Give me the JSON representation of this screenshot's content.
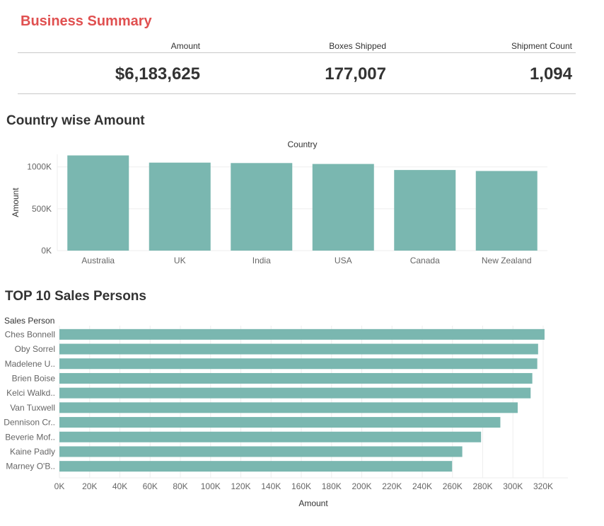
{
  "summary": {
    "title": "Business Summary",
    "kpis": [
      {
        "label": "Amount",
        "value": "$6,183,625"
      },
      {
        "label": "Boxes Shipped",
        "value": "177,007"
      },
      {
        "label": "Shipment Count",
        "value": "1,094"
      }
    ]
  },
  "country_section": {
    "title": "Country wise Amount"
  },
  "sales_section": {
    "title": "TOP 10 Sales Persons"
  },
  "colors": {
    "bar": "#7ab7b0",
    "accent_title": "#e05050",
    "grid": "#eeeeee",
    "tick_text": "#666666"
  },
  "chart_data": [
    {
      "type": "bar",
      "orientation": "vertical",
      "title": "",
      "column_header": "Country",
      "xlabel": "",
      "ylabel": "Amount",
      "categories": [
        "Australia",
        "UK",
        "India",
        "USA",
        "Canada",
        "New Zealand"
      ],
      "values": [
        1137000,
        1051000,
        1046000,
        1035000,
        963000,
        951000
      ],
      "ylim": [
        0,
        1150000
      ],
      "yticks": [
        0,
        500000,
        1000000
      ],
      "ytick_labels": [
        "0K",
        "500K",
        "1000K"
      ],
      "grid": true
    },
    {
      "type": "bar",
      "orientation": "horizontal",
      "title": "",
      "row_header": "Sales Person",
      "xlabel": "Amount",
      "categories": [
        "Ches Bonnell",
        "Oby Sorrel",
        "Madelene U..",
        "Brien Boise",
        "Kelci Walkd..",
        "Van Tuxwell",
        "Dennison Cr..",
        "Beverie Mof..",
        "Kaine Padly",
        "Marney O'B.."
      ],
      "values": [
        320901,
        316645,
        316099,
        312816,
        311710,
        303149,
        291669,
        278922,
        266490,
        259742
      ],
      "xlim": [
        0,
        330000
      ],
      "xticks": [
        0,
        20000,
        40000,
        60000,
        80000,
        100000,
        120000,
        140000,
        160000,
        180000,
        200000,
        220000,
        240000,
        260000,
        280000,
        300000,
        320000
      ],
      "xtick_labels": [
        "0K",
        "20K",
        "40K",
        "60K",
        "80K",
        "100K",
        "120K",
        "140K",
        "160K",
        "180K",
        "200K",
        "220K",
        "240K",
        "260K",
        "280K",
        "300K",
        "320K"
      ],
      "grid": true
    }
  ]
}
